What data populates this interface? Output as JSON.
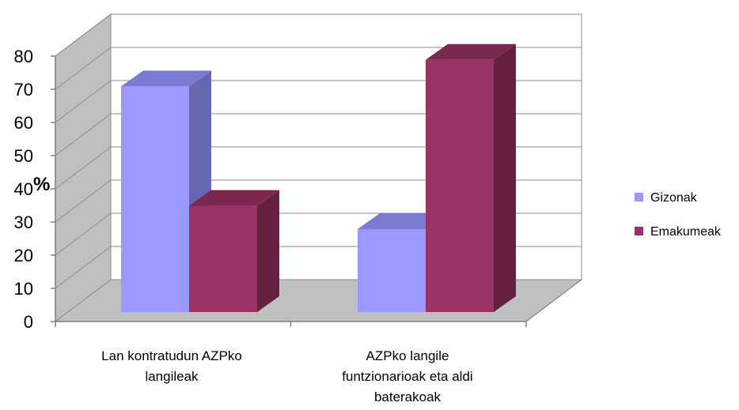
{
  "chart_data": {
    "type": "bar",
    "title": "",
    "ylabel": "%",
    "xlabel": "",
    "ylim": [
      0,
      80
    ],
    "yticks": [
      0,
      10,
      20,
      30,
      40,
      50,
      60,
      70,
      80
    ],
    "categories": [
      [
        "Lan kontratudun  AZPko",
        "langileak"
      ],
      [
        "AZPko langile",
        "funtzionarioak eta aldi",
        "baterakoak"
      ]
    ],
    "series": [
      {
        "name": "Gizonak",
        "values": [
          68,
          25
        ],
        "color": "#9999ff",
        "side": "#6666b3",
        "top": "#7a7ad1"
      },
      {
        "name": "Emakumeak",
        "values": [
          32,
          76
        ],
        "color": "#993366",
        "side": "#64213f",
        "top": "#7a2850"
      }
    ],
    "grid": true,
    "legend": "right",
    "three_d": true
  }
}
